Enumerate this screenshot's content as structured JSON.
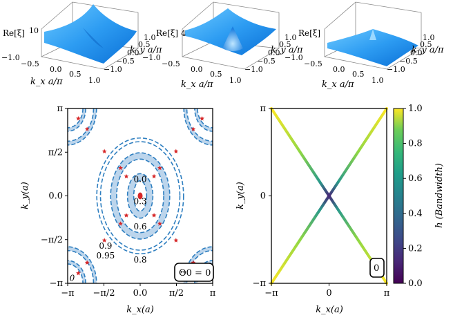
{
  "chart_data": [
    {
      "type": "surface",
      "panel": "top-left",
      "zlabel": "Re[ξ]",
      "ztick_top": "10",
      "xlabel": "k_x a/π",
      "ylabel": "k_y a/π",
      "xticks": [
        "−1.0",
        "−0.5",
        "0.0",
        "0.5",
        "1.0"
      ],
      "yticks": [
        "−1.0",
        "−0.5",
        "0.0",
        "0.5",
        "1.0"
      ]
    },
    {
      "type": "surface",
      "panel": "top-center",
      "zlabel": "Re[ξ]",
      "ztick_top": "4",
      "xlabel": "k_x a/π",
      "ylabel": "k_y a/π",
      "xticks": [
        "−1.0",
        "−0.5",
        "0.0",
        "0.5",
        "1.0"
      ],
      "yticks": [
        "−1.0",
        "−0.5",
        "0.0",
        "0.5",
        "1.0"
      ]
    },
    {
      "type": "surface",
      "panel": "top-right",
      "zlabel": "Re[ξ]",
      "ztick_top": "",
      "xlabel": "k_x a/π",
      "ylabel": "k_y a/π",
      "xticks": [
        "−1.0",
        "−0.5",
        "0.0",
        "0.5",
        "1.0"
      ],
      "yticks": [
        "−1.0",
        "−0.5",
        "0.0",
        "0.5",
        "1.0"
      ]
    },
    {
      "type": "contour",
      "panel": "bottom-left",
      "xlabel": "k_x(a)",
      "ylabel": "k_y(a)",
      "xticks": [
        "−π",
        "−π/2",
        "0.0",
        "π/2",
        "π"
      ],
      "yticks": [
        "−π",
        "−π/2",
        "0.0",
        "π/2",
        "π"
      ],
      "xlim": [
        -3.1416,
        3.1416
      ],
      "ylim": [
        -3.1416,
        3.1416
      ],
      "levels": [
        {
          "label": "0.0",
          "x": 0.0,
          "y": 0.6
        },
        {
          "label": "0.3",
          "x": 0.0,
          "y": -0.2
        },
        {
          "label": "0.6",
          "x": 0.0,
          "y": -1.1
        },
        {
          "label": "0.9",
          "x": -1.5,
          "y": -1.8
        },
        {
          "label": "0.95",
          "x": -1.5,
          "y": -2.15
        },
        {
          "label": "0.8",
          "x": 0.0,
          "y": -2.3
        },
        {
          "label": "0",
          "x": -2.95,
          "y": -2.95
        }
      ],
      "ellipses": [
        {
          "rx": 0.28,
          "ry": 0.55
        },
        {
          "rx": 0.55,
          "ry": 0.8
        },
        {
          "rx": 1.02,
          "ry": 1.32
        },
        {
          "rx": 1.28,
          "ry": 1.55
        },
        {
          "rx": 1.72,
          "ry": 1.95
        },
        {
          "rx": 1.88,
          "ry": 2.08
        }
      ],
      "markers": [
        [
          -2.3,
          2.4
        ],
        [
          2.3,
          2.4
        ],
        [
          -2.68,
          2.78
        ],
        [
          2.68,
          2.78
        ],
        [
          -1.55,
          1.6
        ],
        [
          1.55,
          1.6
        ],
        [
          -0.85,
          1.0
        ],
        [
          0.85,
          1.0
        ],
        [
          -0.6,
          0.7
        ],
        [
          0.6,
          0.7
        ],
        [
          -0.85,
          -1.0
        ],
        [
          0.85,
          -1.0
        ],
        [
          -0.6,
          -0.7
        ],
        [
          0.6,
          -0.7
        ],
        [
          -1.55,
          -1.6
        ],
        [
          1.55,
          -1.6
        ],
        [
          -2.3,
          -2.4
        ],
        [
          2.3,
          -2.4
        ],
        [
          -2.68,
          -2.78
        ],
        [
          2.68,
          -2.78
        ],
        [
          0.0,
          0.0
        ]
      ],
      "badge": "Θ0 = 0"
    },
    {
      "type": "line",
      "panel": "bottom-right",
      "xlabel": "k_x(a)",
      "ylabel": "k_y(a)",
      "xticks": [
        "−π",
        "0",
        "π"
      ],
      "yticks": [
        "−π",
        "0",
        "π"
      ],
      "xlim": [
        -3.1416,
        3.1416
      ],
      "ylim": [
        -3.1416,
        3.1416
      ],
      "series": [
        {
          "x": [
            -3.1416,
            0,
            3.1416
          ],
          "y": [
            3.1416,
            0,
            -3.1416
          ]
        },
        {
          "x": [
            -3.1416,
            0,
            3.1416
          ],
          "y": [
            -3.1416,
            0,
            3.1416
          ]
        }
      ],
      "colorbar": {
        "label": "h (Bandwidth)",
        "range": [
          0.0,
          1.0
        ],
        "ticks": [
          "0.0",
          "0.2",
          "0.4",
          "0.6",
          "0.8",
          "1.0"
        ],
        "colormap": "viridis"
      },
      "badge": "0"
    }
  ],
  "colors": {
    "contour_line": "#2f7fc0",
    "contour_fill": "#bcd5ec",
    "marker": "#d62728",
    "surface_light": "#5ec0ff",
    "surface_dark": "#0a6fd6"
  }
}
